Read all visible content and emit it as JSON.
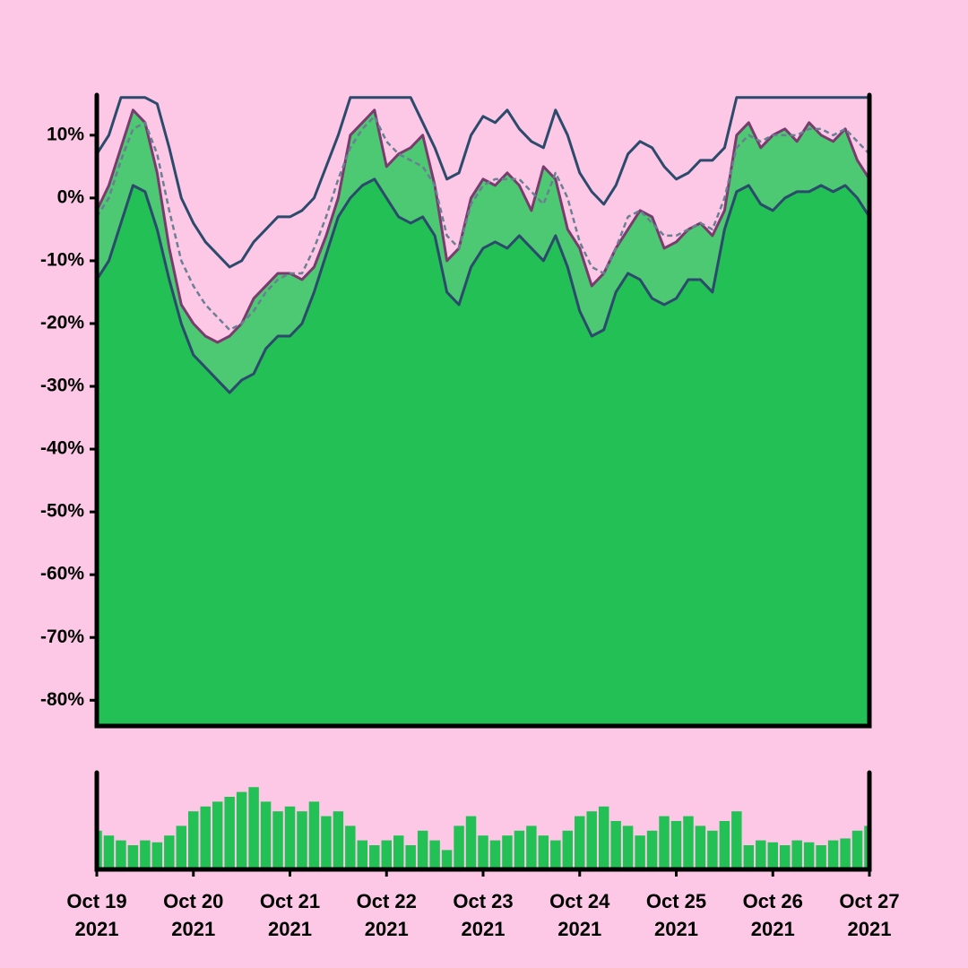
{
  "chart_data": [
    {
      "type": "band",
      "ylim": [
        -84.1,
        16.4
      ],
      "yticks": [
        {
          "value": 10,
          "label": "10%"
        },
        {
          "value": 0,
          "label": "0%"
        },
        {
          "value": -10,
          "label": "-10%"
        },
        {
          "value": -20,
          "label": "-20%"
        },
        {
          "value": -30,
          "label": "-30%"
        },
        {
          "value": -40,
          "label": "-40%"
        },
        {
          "value": -50,
          "label": "-50%"
        },
        {
          "value": -60,
          "label": "-60%"
        },
        {
          "value": -70,
          "label": "-70%"
        },
        {
          "value": -80,
          "label": "-80%"
        }
      ],
      "xlim": [
        "2021-10-19T00:00",
        "2021-10-27T00:00"
      ],
      "x": [
        "2021-10-19T00:00",
        "2021-10-19T03:00",
        "2021-10-19T06:00",
        "2021-10-19T09:00",
        "2021-10-19T12:00",
        "2021-10-19T15:00",
        "2021-10-19T18:00",
        "2021-10-19T21:00",
        "2021-10-20T00:00",
        "2021-10-20T03:00",
        "2021-10-20T06:00",
        "2021-10-20T09:00",
        "2021-10-20T12:00",
        "2021-10-20T15:00",
        "2021-10-20T18:00",
        "2021-10-20T21:00",
        "2021-10-21T00:00",
        "2021-10-21T03:00",
        "2021-10-21T06:00",
        "2021-10-21T09:00",
        "2021-10-21T12:00",
        "2021-10-21T15:00",
        "2021-10-21T18:00",
        "2021-10-21T21:00",
        "2021-10-22T00:00",
        "2021-10-22T03:00",
        "2021-10-22T06:00",
        "2021-10-22T09:00",
        "2021-10-22T12:00",
        "2021-10-22T15:00",
        "2021-10-22T18:00",
        "2021-10-22T21:00",
        "2021-10-23T00:00",
        "2021-10-23T03:00",
        "2021-10-23T06:00",
        "2021-10-23T09:00",
        "2021-10-23T12:00",
        "2021-10-23T15:00",
        "2021-10-23T18:00",
        "2021-10-23T21:00",
        "2021-10-24T00:00",
        "2021-10-24T03:00",
        "2021-10-24T06:00",
        "2021-10-24T09:00",
        "2021-10-24T12:00",
        "2021-10-24T15:00",
        "2021-10-24T18:00",
        "2021-10-24T21:00",
        "2021-10-25T00:00",
        "2021-10-25T03:00",
        "2021-10-25T06:00",
        "2021-10-25T09:00",
        "2021-10-25T12:00",
        "2021-10-25T15:00",
        "2021-10-25T18:00",
        "2021-10-25T21:00",
        "2021-10-26T00:00",
        "2021-10-26T03:00",
        "2021-10-26T06:00",
        "2021-10-26T09:00",
        "2021-10-26T12:00",
        "2021-10-26T15:00",
        "2021-10-26T18:00",
        "2021-10-26T21:00",
        "2021-10-27T00:00"
      ],
      "series": [
        {
          "role": "price",
          "color": "#7a3b6e",
          "fill": "#4cc972",
          "values": [
            -2,
            2,
            8,
            14,
            12,
            4,
            -8,
            -17,
            -20,
            -22,
            -23,
            -22,
            -20,
            -16,
            -14,
            -12,
            -12,
            -13,
            -11,
            -6,
            0,
            10,
            12,
            14,
            5,
            7,
            8,
            10,
            2,
            -10,
            -8,
            0,
            3,
            2,
            4,
            2,
            -2,
            5,
            3,
            -5,
            -8,
            -14,
            -12,
            -8,
            -5,
            -2,
            -3,
            -8,
            -7,
            -5,
            -4,
            -6,
            -2,
            10,
            12,
            8,
            10,
            11,
            9,
            12,
            10,
            9,
            11,
            6,
            3
          ]
        },
        {
          "role": "lower",
          "color": "#2c4a6b",
          "fill": "#22c055",
          "values": [
            -13,
            -10,
            -4,
            2,
            1,
            -5,
            -13,
            -20,
            -25,
            -27,
            -29,
            -31,
            -29,
            -28,
            -24,
            -22,
            -22,
            -20,
            -15,
            -9,
            -3,
            0,
            2,
            3,
            0,
            -3,
            -4,
            -3,
            -6,
            -15,
            -17,
            -11,
            -8,
            -7,
            -8,
            -6,
            -8,
            -10,
            -6,
            -11,
            -18,
            -22,
            -21,
            -15,
            -12,
            -13,
            -16,
            -17,
            -16,
            -13,
            -13,
            -15,
            -5,
            1,
            2,
            -1,
            -2,
            0,
            1,
            1,
            2,
            1,
            2,
            0,
            -3
          ]
        },
        {
          "role": "upper",
          "color": "#2c4a6b",
          "values": [
            7,
            10,
            16,
            16,
            16,
            15,
            8,
            0,
            -4,
            -7,
            -9,
            -11,
            -10,
            -7,
            -5,
            -3,
            -3,
            -2,
            0,
            5,
            10,
            16,
            16,
            16,
            16,
            16,
            16,
            12,
            8,
            3,
            4,
            10,
            13,
            12,
            14,
            11,
            9,
            8,
            14,
            10,
            4,
            1,
            -1,
            2,
            7,
            9,
            8,
            5,
            3,
            4,
            6,
            6,
            8,
            16,
            16,
            16,
            16,
            16,
            16,
            16,
            16,
            16,
            16,
            16,
            16
          ]
        },
        {
          "role": "mid",
          "color": "#6b7f93",
          "dash": true,
          "values": [
            -3,
            0,
            6,
            11,
            12,
            7,
            -2,
            -10,
            -14,
            -17,
            -19,
            -21,
            -20,
            -18,
            -15,
            -13,
            -12,
            -12,
            -8,
            -3,
            3,
            8,
            11,
            13,
            9,
            7,
            6,
            5,
            2,
            -6,
            -8,
            -1,
            2,
            3,
            3,
            3,
            1,
            -1,
            4,
            0,
            -7,
            -11,
            -12,
            -8,
            -3,
            -2,
            -4,
            -6,
            -6,
            -5,
            -4,
            -5,
            0,
            8,
            10,
            9,
            10,
            10,
            10,
            11,
            11,
            10,
            11,
            9,
            7
          ]
        }
      ]
    },
    {
      "type": "bar",
      "color": "#22c055",
      "ylim": [
        0,
        100
      ],
      "xlim": [
        "2021-10-19T00:00",
        "2021-10-27T00:00"
      ],
      "xticks": [
        {
          "value": "2021-10-19T00:00",
          "label": "Oct 19\n2021"
        },
        {
          "value": "2021-10-20T00:00",
          "label": "Oct 20\n2021"
        },
        {
          "value": "2021-10-21T00:00",
          "label": "Oct 21\n2021"
        },
        {
          "value": "2021-10-22T00:00",
          "label": "Oct 22\n2021"
        },
        {
          "value": "2021-10-23T00:00",
          "label": "Oct 23\n2021"
        },
        {
          "value": "2021-10-24T00:00",
          "label": "Oct 24\n2021"
        },
        {
          "value": "2021-10-25T00:00",
          "label": "Oct 25\n2021"
        },
        {
          "value": "2021-10-26T00:00",
          "label": "Oct 26\n2021"
        },
        {
          "value": "2021-10-27T00:00",
          "label": "Oct 27\n2021"
        }
      ],
      "x": [
        "2021-10-19T00:00",
        "2021-10-19T03:00",
        "2021-10-19T06:00",
        "2021-10-19T09:00",
        "2021-10-19T12:00",
        "2021-10-19T15:00",
        "2021-10-19T18:00",
        "2021-10-19T21:00",
        "2021-10-20T00:00",
        "2021-10-20T03:00",
        "2021-10-20T06:00",
        "2021-10-20T09:00",
        "2021-10-20T12:00",
        "2021-10-20T15:00",
        "2021-10-20T18:00",
        "2021-10-20T21:00",
        "2021-10-21T00:00",
        "2021-10-21T03:00",
        "2021-10-21T06:00",
        "2021-10-21T09:00",
        "2021-10-21T12:00",
        "2021-10-21T15:00",
        "2021-10-21T18:00",
        "2021-10-21T21:00",
        "2021-10-22T00:00",
        "2021-10-22T03:00",
        "2021-10-22T06:00",
        "2021-10-22T09:00",
        "2021-10-22T12:00",
        "2021-10-22T15:00",
        "2021-10-22T18:00",
        "2021-10-22T21:00",
        "2021-10-23T00:00",
        "2021-10-23T03:00",
        "2021-10-23T06:00",
        "2021-10-23T09:00",
        "2021-10-23T12:00",
        "2021-10-23T15:00",
        "2021-10-23T18:00",
        "2021-10-23T21:00",
        "2021-10-24T00:00",
        "2021-10-24T03:00",
        "2021-10-24T06:00",
        "2021-10-24T09:00",
        "2021-10-24T12:00",
        "2021-10-24T15:00",
        "2021-10-24T18:00",
        "2021-10-24T21:00",
        "2021-10-25T00:00",
        "2021-10-25T03:00",
        "2021-10-25T06:00",
        "2021-10-25T09:00",
        "2021-10-25T12:00",
        "2021-10-25T15:00",
        "2021-10-25T18:00",
        "2021-10-25T21:00",
        "2021-10-26T00:00",
        "2021-10-26T03:00",
        "2021-10-26T06:00",
        "2021-10-26T09:00",
        "2021-10-26T12:00",
        "2021-10-26T15:00",
        "2021-10-26T18:00",
        "2021-10-26T21:00",
        "2021-10-27T00:00"
      ],
      "values": [
        40,
        35,
        30,
        25,
        30,
        28,
        35,
        45,
        60,
        65,
        70,
        75,
        80,
        85,
        70,
        60,
        65,
        60,
        70,
        55,
        60,
        45,
        30,
        25,
        30,
        35,
        25,
        40,
        30,
        20,
        45,
        55,
        35,
        30,
        35,
        40,
        45,
        35,
        30,
        40,
        55,
        60,
        65,
        50,
        45,
        35,
        40,
        55,
        50,
        55,
        45,
        40,
        50,
        60,
        25,
        30,
        28,
        25,
        30,
        28,
        25,
        30,
        32,
        40,
        45
      ]
    }
  ]
}
